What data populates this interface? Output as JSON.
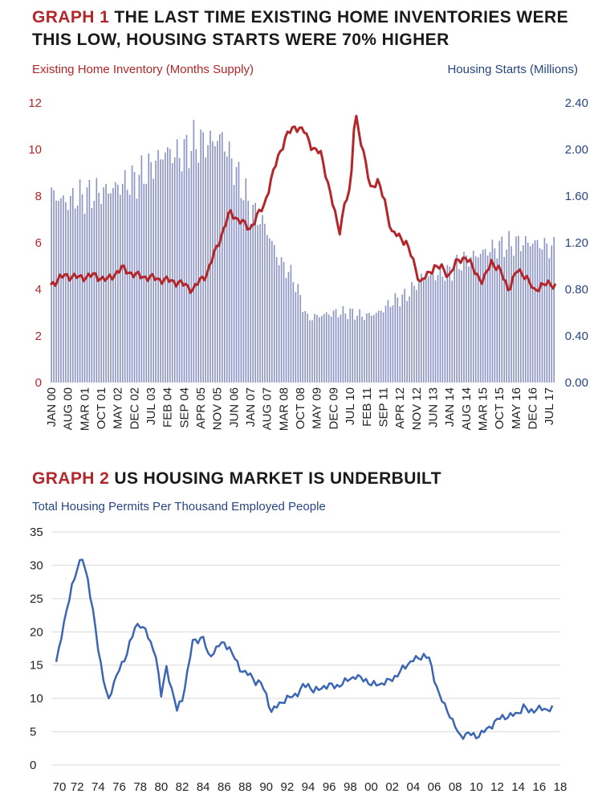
{
  "graph1": {
    "title_lead": "GRAPH 1",
    "title_rest": "THE LAST TIME EXISTING HOME INVENTORIES WERE THIS LOW, HOUSING STARTS WERE 70% HIGHER",
    "left_axis_label": "Existing Home Inventory (Months Supply)",
    "right_axis_label": "Housing Starts (Millions)"
  },
  "graph2": {
    "title_lead": "GRAPH 2",
    "title_rest": "US HOUSING MARKET IS UNDERBUILT",
    "axis_label": "Total Housing Permits Per Thousand Employed People"
  },
  "colors": {
    "red": "#b3262a",
    "navy": "#27467f",
    "bars": "#8a93c4",
    "line2": "#3a66b3",
    "grid": "#d9d9d9"
  },
  "chart_data": [
    {
      "type": "bar+line",
      "title": "THE LAST TIME EXISTING HOME INVENTORIES WERE THIS LOW, HOUSING STARTS WERE 70% HIGHER",
      "x_tick_labels": [
        "JAN 00",
        "AUG 00",
        "MAR 01",
        "OCT 01",
        "MAY 02",
        "DEC 02",
        "JUL 03",
        "FEB 04",
        "SEP 04",
        "APR 05",
        "NOV 05",
        "JUN 06",
        "JAN 07",
        "AUG 07",
        "MAR 08",
        "OCT 08",
        "MAY 09",
        "DEC 09",
        "JUL 10",
        "FEB 11",
        "SEP 11",
        "APR 12",
        "NOV 12",
        "JUN 13",
        "JAN 14",
        "AUG 14",
        "MAR 15",
        "OCT 15",
        "MAY 16",
        "DEC 16",
        "JUL 17"
      ],
      "x_range": [
        "JAN 00",
        "SEP 17"
      ],
      "left_axis": {
        "label": "Existing Home Inventory (Months Supply)",
        "ticks": [
          "0",
          "2",
          "4",
          "6",
          "8",
          "10",
          "12"
        ],
        "range": [
          0,
          12
        ]
      },
      "right_axis": {
        "label": "Housing Starts (Millions)",
        "ticks": [
          "0.00",
          "0.40",
          "0.80",
          "1.20",
          "1.60",
          "2.00",
          "2.40"
        ],
        "range": [
          0,
          2.4
        ]
      },
      "series": [
        {
          "kind": "bar",
          "axis": "right",
          "anchors": [
            [
              2000.0,
              1.62
            ],
            [
              2000.5,
              1.55
            ],
            [
              2001.0,
              1.6
            ],
            [
              2001.5,
              1.62
            ],
            [
              2002.0,
              1.65
            ],
            [
              2002.5,
              1.7
            ],
            [
              2003.0,
              1.75
            ],
            [
              2003.5,
              1.85
            ],
            [
              2004.0,
              1.98
            ],
            [
              2004.5,
              1.95
            ],
            [
              2005.0,
              2.05
            ],
            [
              2005.5,
              2.06
            ],
            [
              2006.0,
              2.1
            ],
            [
              2006.5,
              1.8
            ],
            [
              2007.0,
              1.5
            ],
            [
              2007.5,
              1.35
            ],
            [
              2008.0,
              1.05
            ],
            [
              2008.5,
              0.9
            ],
            [
              2009.0,
              0.55
            ],
            [
              2009.5,
              0.58
            ],
            [
              2010.0,
              0.6
            ],
            [
              2010.5,
              0.6
            ],
            [
              2011.0,
              0.57
            ],
            [
              2011.5,
              0.6
            ],
            [
              2012.0,
              0.7
            ],
            [
              2012.5,
              0.75
            ],
            [
              2013.0,
              0.9
            ],
            [
              2013.5,
              0.92
            ],
            [
              2014.0,
              0.95
            ],
            [
              2014.5,
              1.05
            ],
            [
              2015.0,
              1.1
            ],
            [
              2015.5,
              1.15
            ],
            [
              2016.0,
              1.18
            ],
            [
              2016.5,
              1.2
            ],
            [
              2017.0,
              1.2
            ],
            [
              2017.67,
              1.15
            ]
          ]
        },
        {
          "kind": "line",
          "axis": "left",
          "points": [
            [
              2000.0,
              4.2
            ],
            [
              2000.5,
              4.6
            ],
            [
              2001.0,
              4.5
            ],
            [
              2001.5,
              4.6
            ],
            [
              2002.0,
              4.4
            ],
            [
              2002.5,
              4.9
            ],
            [
              2003.0,
              4.6
            ],
            [
              2003.5,
              4.5
            ],
            [
              2004.0,
              4.4
            ],
            [
              2004.5,
              4.3
            ],
            [
              2005.0,
              4.0
            ],
            [
              2005.5,
              4.7
            ],
            [
              2006.0,
              6.3
            ],
            [
              2006.3,
              7.3
            ],
            [
              2006.6,
              7.0
            ],
            [
              2007.0,
              6.6
            ],
            [
              2007.5,
              7.6
            ],
            [
              2008.0,
              9.7
            ],
            [
              2008.3,
              10.6
            ],
            [
              2008.6,
              11.0
            ],
            [
              2008.9,
              10.8
            ],
            [
              2009.2,
              10.1
            ],
            [
              2009.5,
              9.8
            ],
            [
              2009.75,
              8.6
            ],
            [
              2009.95,
              7.5
            ],
            [
              2010.15,
              6.4
            ],
            [
              2010.35,
              7.8
            ],
            [
              2010.55,
              8.2
            ],
            [
              2010.7,
              11.8
            ],
            [
              2010.85,
              10.7
            ],
            [
              2011.0,
              9.8
            ],
            [
              2011.25,
              8.4
            ],
            [
              2011.5,
              8.6
            ],
            [
              2011.75,
              7.8
            ],
            [
              2012.0,
              6.4
            ],
            [
              2012.25,
              6.3
            ],
            [
              2012.5,
              6.0
            ],
            [
              2012.75,
              5.2
            ],
            [
              2013.0,
              4.3
            ],
            [
              2013.25,
              4.6
            ],
            [
              2013.5,
              5.0
            ],
            [
              2013.75,
              4.9
            ],
            [
              2014.0,
              4.6
            ],
            [
              2014.3,
              5.2
            ],
            [
              2014.6,
              5.4
            ],
            [
              2014.9,
              4.8
            ],
            [
              2015.2,
              4.3
            ],
            [
              2015.5,
              5.2
            ],
            [
              2015.8,
              4.8
            ],
            [
              2016.1,
              4.0
            ],
            [
              2016.4,
              4.8
            ],
            [
              2016.7,
              4.6
            ],
            [
              2017.0,
              3.9
            ],
            [
              2017.25,
              4.2
            ],
            [
              2017.67,
              4.2
            ]
          ]
        }
      ]
    },
    {
      "type": "line",
      "title": "US HOUSING MARKET IS UNDERBUILT",
      "ylabel": "Total Housing Permits Per Thousand Employed People",
      "x_tick_labels": [
        "70",
        "72",
        "74",
        "76",
        "78",
        "80",
        "82",
        "84",
        "86",
        "88",
        "90",
        "92",
        "94",
        "96",
        "98",
        "00",
        "02",
        "04",
        "06",
        "08",
        "10",
        "12",
        "14",
        "16",
        "18"
      ],
      "y_ticks": [
        "0",
        "5",
        "10",
        "15",
        "20",
        "25",
        "30",
        "35"
      ],
      "xlim": [
        1970,
        2018
      ],
      "ylim": [
        0,
        35
      ],
      "series": [
        {
          "points": [
            [
              1970.0,
              15.5
            ],
            [
              1970.5,
              19.5
            ],
            [
              1971.0,
              23.0
            ],
            [
              1971.5,
              27.0
            ],
            [
              1972.0,
              29.5
            ],
            [
              1972.5,
              31.0
            ],
            [
              1973.0,
              28.0
            ],
            [
              1973.5,
              23.0
            ],
            [
              1974.0,
              17.5
            ],
            [
              1974.5,
              13.0
            ],
            [
              1975.0,
              9.5
            ],
            [
              1975.5,
              12.5
            ],
            [
              1976.0,
              14.5
            ],
            [
              1976.5,
              15.5
            ],
            [
              1977.0,
              18.5
            ],
            [
              1977.5,
              20.5
            ],
            [
              1978.0,
              21.0
            ],
            [
              1978.5,
              20.5
            ],
            [
              1979.0,
              18.0
            ],
            [
              1979.5,
              16.5
            ],
            [
              1980.0,
              10.5
            ],
            [
              1980.5,
              14.5
            ],
            [
              1981.0,
              11.5
            ],
            [
              1981.5,
              8.3
            ],
            [
              1982.0,
              9.8
            ],
            [
              1982.5,
              14.0
            ],
            [
              1983.0,
              18.5
            ],
            [
              1983.5,
              18.8
            ],
            [
              1984.0,
              19.2
            ],
            [
              1984.5,
              16.3
            ],
            [
              1985.0,
              17.0
            ],
            [
              1985.5,
              18.0
            ],
            [
              1986.0,
              18.3
            ],
            [
              1986.5,
              17.5
            ],
            [
              1987.0,
              16.0
            ],
            [
              1987.5,
              14.5
            ],
            [
              1988.0,
              13.8
            ],
            [
              1988.5,
              13.5
            ],
            [
              1989.0,
              12.5
            ],
            [
              1989.5,
              12.3
            ],
            [
              1990.0,
              10.5
            ],
            [
              1990.5,
              8.0
            ],
            [
              1991.0,
              8.8
            ],
            [
              1991.5,
              9.5
            ],
            [
              1992.0,
              10.0
            ],
            [
              1992.5,
              10.3
            ],
            [
              1993.0,
              10.8
            ],
            [
              1993.5,
              11.8
            ],
            [
              1994.0,
              12.0
            ],
            [
              1994.5,
              11.2
            ],
            [
              1995.0,
              11.3
            ],
            [
              1995.5,
              11.8
            ],
            [
              1996.0,
              12.0
            ],
            [
              1996.5,
              11.8
            ],
            [
              1997.0,
              12.0
            ],
            [
              1997.5,
              12.5
            ],
            [
              1998.0,
              13.0
            ],
            [
              1998.5,
              13.3
            ],
            [
              1999.0,
              13.0
            ],
            [
              1999.5,
              12.8
            ],
            [
              2000.0,
              12.0
            ],
            [
              2000.5,
              12.2
            ],
            [
              2001.0,
              12.2
            ],
            [
              2001.5,
              12.5
            ],
            [
              2002.0,
              13.0
            ],
            [
              2002.5,
              13.5
            ],
            [
              2003.0,
              14.5
            ],
            [
              2003.5,
              15.2
            ],
            [
              2004.0,
              15.8
            ],
            [
              2004.5,
              16.0
            ],
            [
              2005.0,
              16.5
            ],
            [
              2005.5,
              16.0
            ],
            [
              2006.0,
              13.0
            ],
            [
              2006.5,
              10.5
            ],
            [
              2007.0,
              8.8
            ],
            [
              2007.5,
              7.5
            ],
            [
              2008.0,
              5.8
            ],
            [
              2008.4,
              4.2
            ],
            [
              2008.8,
              4.5
            ],
            [
              2009.2,
              4.8
            ],
            [
              2009.6,
              4.5
            ],
            [
              2010.0,
              4.3
            ],
            [
              2010.5,
              4.8
            ],
            [
              2011.0,
              5.3
            ],
            [
              2011.5,
              6.0
            ],
            [
              2012.0,
              6.8
            ],
            [
              2012.5,
              7.2
            ],
            [
              2013.0,
              7.3
            ],
            [
              2013.5,
              7.5
            ],
            [
              2014.0,
              7.8
            ],
            [
              2014.5,
              8.8
            ],
            [
              2015.0,
              8.0
            ],
            [
              2015.5,
              8.3
            ],
            [
              2016.0,
              8.5
            ],
            [
              2016.5,
              8.3
            ],
            [
              2017.0,
              8.5
            ],
            [
              2017.25,
              8.5
            ]
          ]
        }
      ]
    }
  ]
}
